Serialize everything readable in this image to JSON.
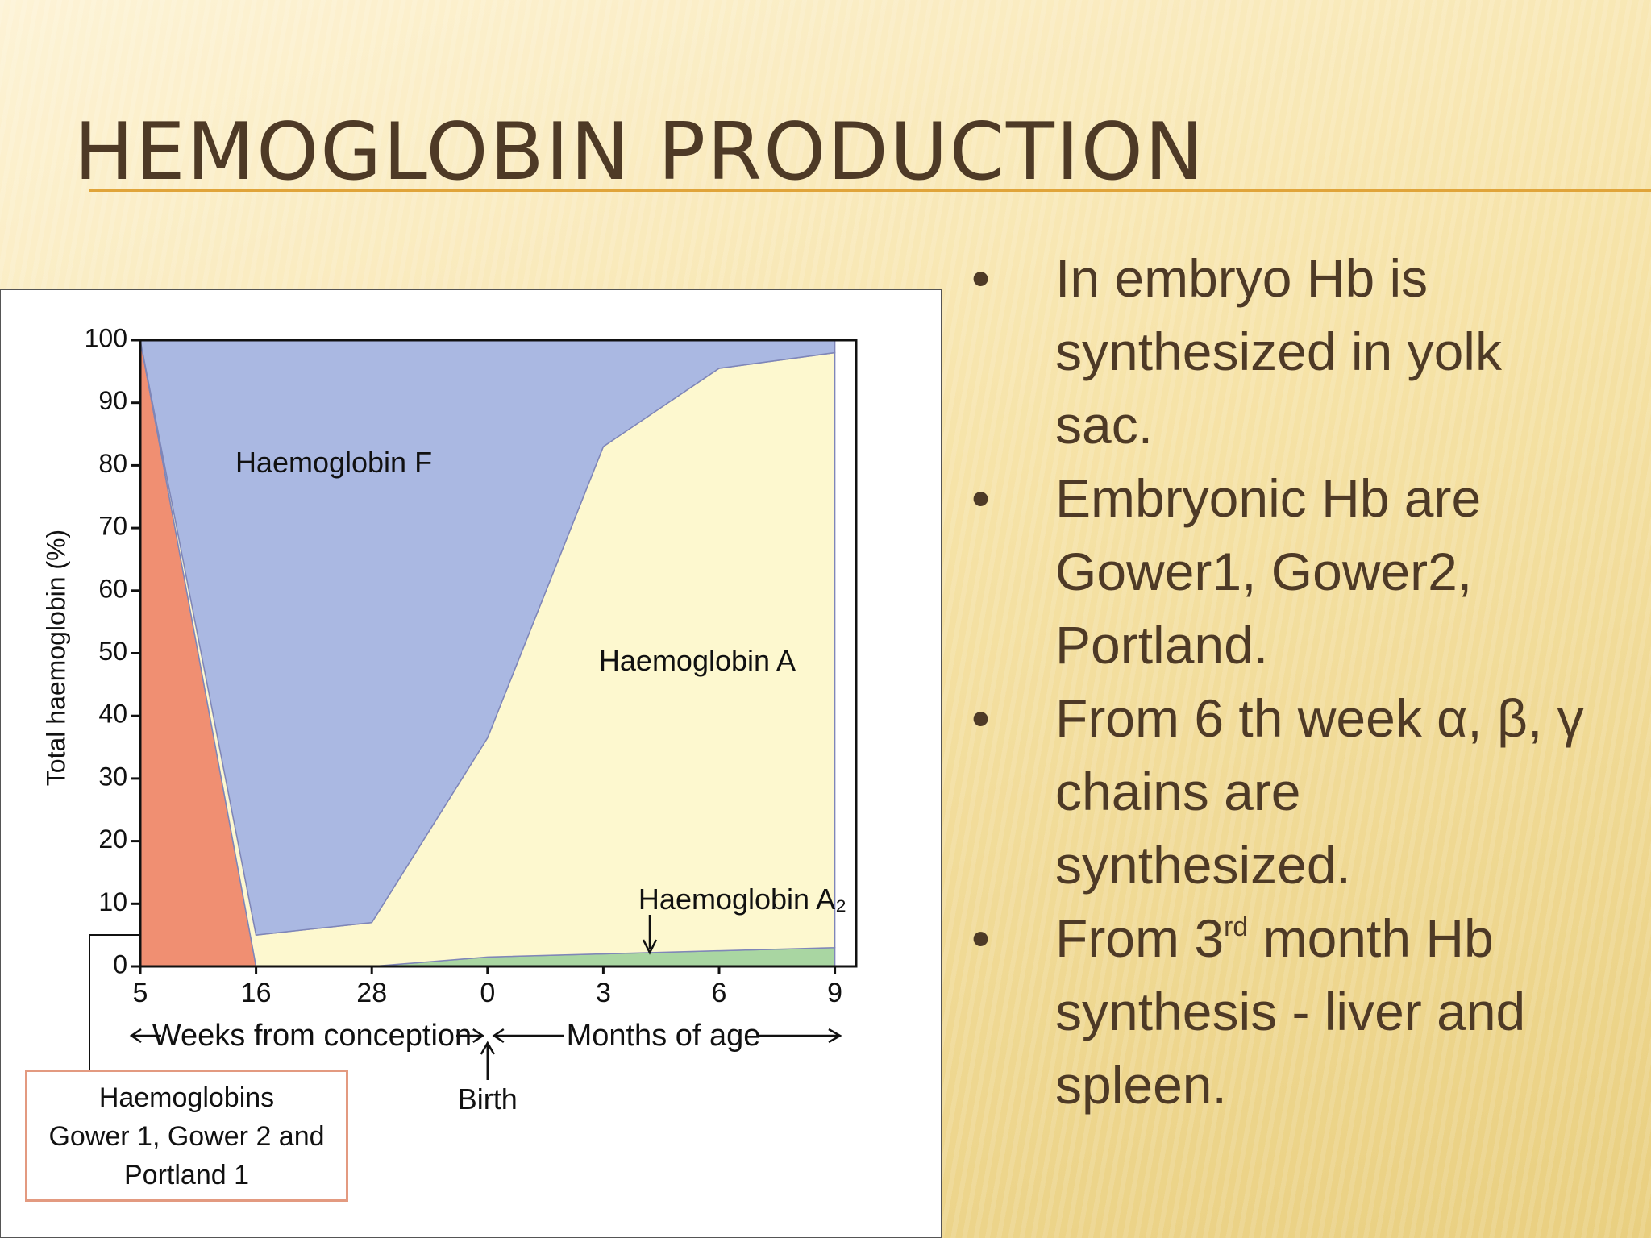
{
  "header": {
    "title": "HEMOGLOBIN PRODUCTION"
  },
  "bullets": [
    "In embryo Hb is synthesized in yolk sac.",
    "Embryonic Hb are Gower1, Gower2, Portland.",
    "From 6 th week α, β, γ chains are synthesized.",
    [
      "From 3",
      "rd",
      " month Hb synthesis - liver and spleen."
    ]
  ],
  "chart_data": {
    "type": "stacked-area",
    "y_label": "Total haemoglobin (%)",
    "x_labels": [
      "Weeks from conception",
      "Months of age"
    ],
    "annotation": "Birth",
    "categories": [
      "5",
      "16",
      "28",
      "0",
      "3",
      "6",
      "9"
    ],
    "series": [
      {
        "name": "Haemoglobins\nGower 1, Gower 2 and\nPortland 1",
        "color": "#f08f72",
        "values": [
          100,
          0,
          0,
          0,
          0,
          0,
          0
        ]
      },
      {
        "name": "Haemoglobin A₂",
        "color": "#a9d6a2",
        "values": [
          0,
          0,
          0,
          1.5,
          2,
          2.5,
          3
        ]
      },
      {
        "name": "Haemoglobin A",
        "color": "#fdf8cf",
        "values": [
          0,
          5,
          7,
          35,
          81,
          93,
          95
        ]
      },
      {
        "name": "Haemoglobin F",
        "color": "#aab8e2",
        "values": [
          0,
          95,
          93,
          63.5,
          17,
          4.5,
          2
        ]
      }
    ],
    "ylim": [
      0,
      100
    ],
    "yticks": [
      0,
      10,
      20,
      30,
      40,
      50,
      60,
      70,
      80,
      90,
      100
    ]
  }
}
